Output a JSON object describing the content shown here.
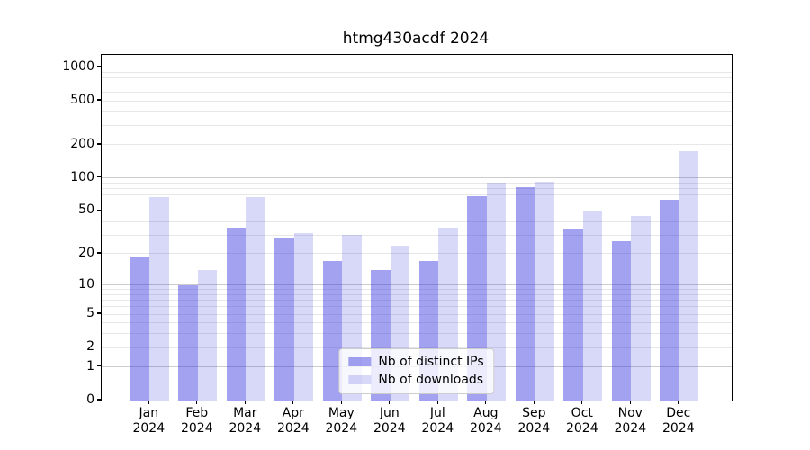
{
  "title": "htmg430acdf 2024",
  "chart_data": {
    "type": "bar",
    "title": "htmg430acdf 2024",
    "categories": [
      "Jan",
      "Feb",
      "Mar",
      "Apr",
      "May",
      "Jun",
      "Jul",
      "Aug",
      "Sep",
      "Oct",
      "Nov",
      "Dec"
    ],
    "year_label": "2024",
    "series": [
      {
        "name": "Nb of distinct IPs",
        "color": "rgba(48,48,222,0.45)",
        "values": [
          19,
          10,
          35,
          28,
          17,
          14,
          17,
          68,
          83,
          34,
          26,
          63
        ]
      },
      {
        "name": "Nb of downloads",
        "color": "rgba(48,48,222,0.19)",
        "values": [
          67,
          14,
          67,
          31,
          30,
          24,
          35,
          91,
          93,
          50,
          45,
          175
        ]
      }
    ],
    "y_ticks": [
      0,
      1,
      2,
      5,
      10,
      20,
      50,
      100,
      200,
      500,
      1000
    ],
    "y_scale": "log1p",
    "ylim": [
      0,
      1000
    ],
    "grid": true,
    "legend_position": "lower center",
    "colors": {
      "major_grid": "#cccccc",
      "minor_grid": "#e7e7e7",
      "spine": "#000000",
      "background": "#ffffff"
    }
  }
}
